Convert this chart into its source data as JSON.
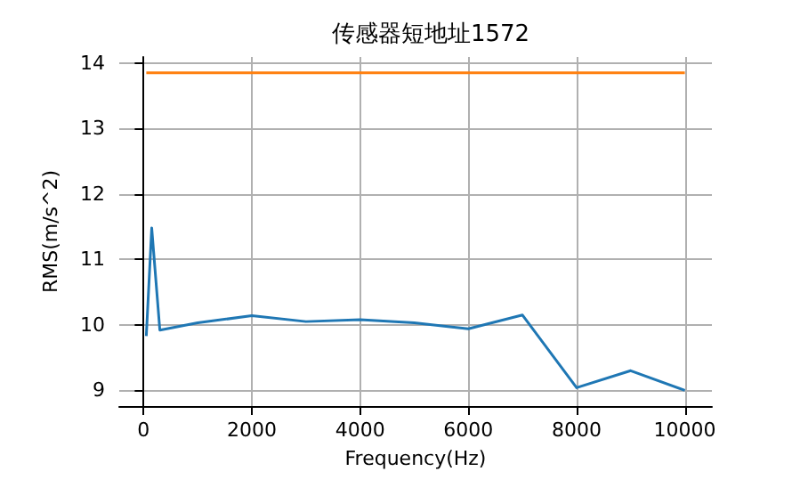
{
  "chart_data": {
    "type": "line",
    "title": "传感器短地址1572",
    "xlabel": "Frequency(Hz)",
    "ylabel": "RMS(m/s^2)",
    "series": [
      {
        "color": "#1f77b4",
        "x": [
          50,
          150,
          300,
          1000,
          2000,
          3000,
          4000,
          5000,
          6000,
          7000,
          8000,
          9000,
          10000
        ],
        "values": [
          9.83,
          11.48,
          9.92,
          10.03,
          10.14,
          10.05,
          10.08,
          10.03,
          9.94,
          10.15,
          9.04,
          9.3,
          9.0
        ]
      },
      {
        "color": "#ff7f0e",
        "x": [
          50,
          10000
        ],
        "values": [
          13.85,
          13.85
        ]
      }
    ],
    "xlim": [
      -450,
      10500
    ],
    "xticks": [
      0,
      2000,
      4000,
      6000,
      8000,
      10000
    ],
    "ylim": [
      8.76,
      14.09
    ],
    "yticks": [
      9,
      10,
      11,
      12,
      13,
      14
    ],
    "grid": true,
    "marker": "none",
    "line_style": "solid"
  }
}
